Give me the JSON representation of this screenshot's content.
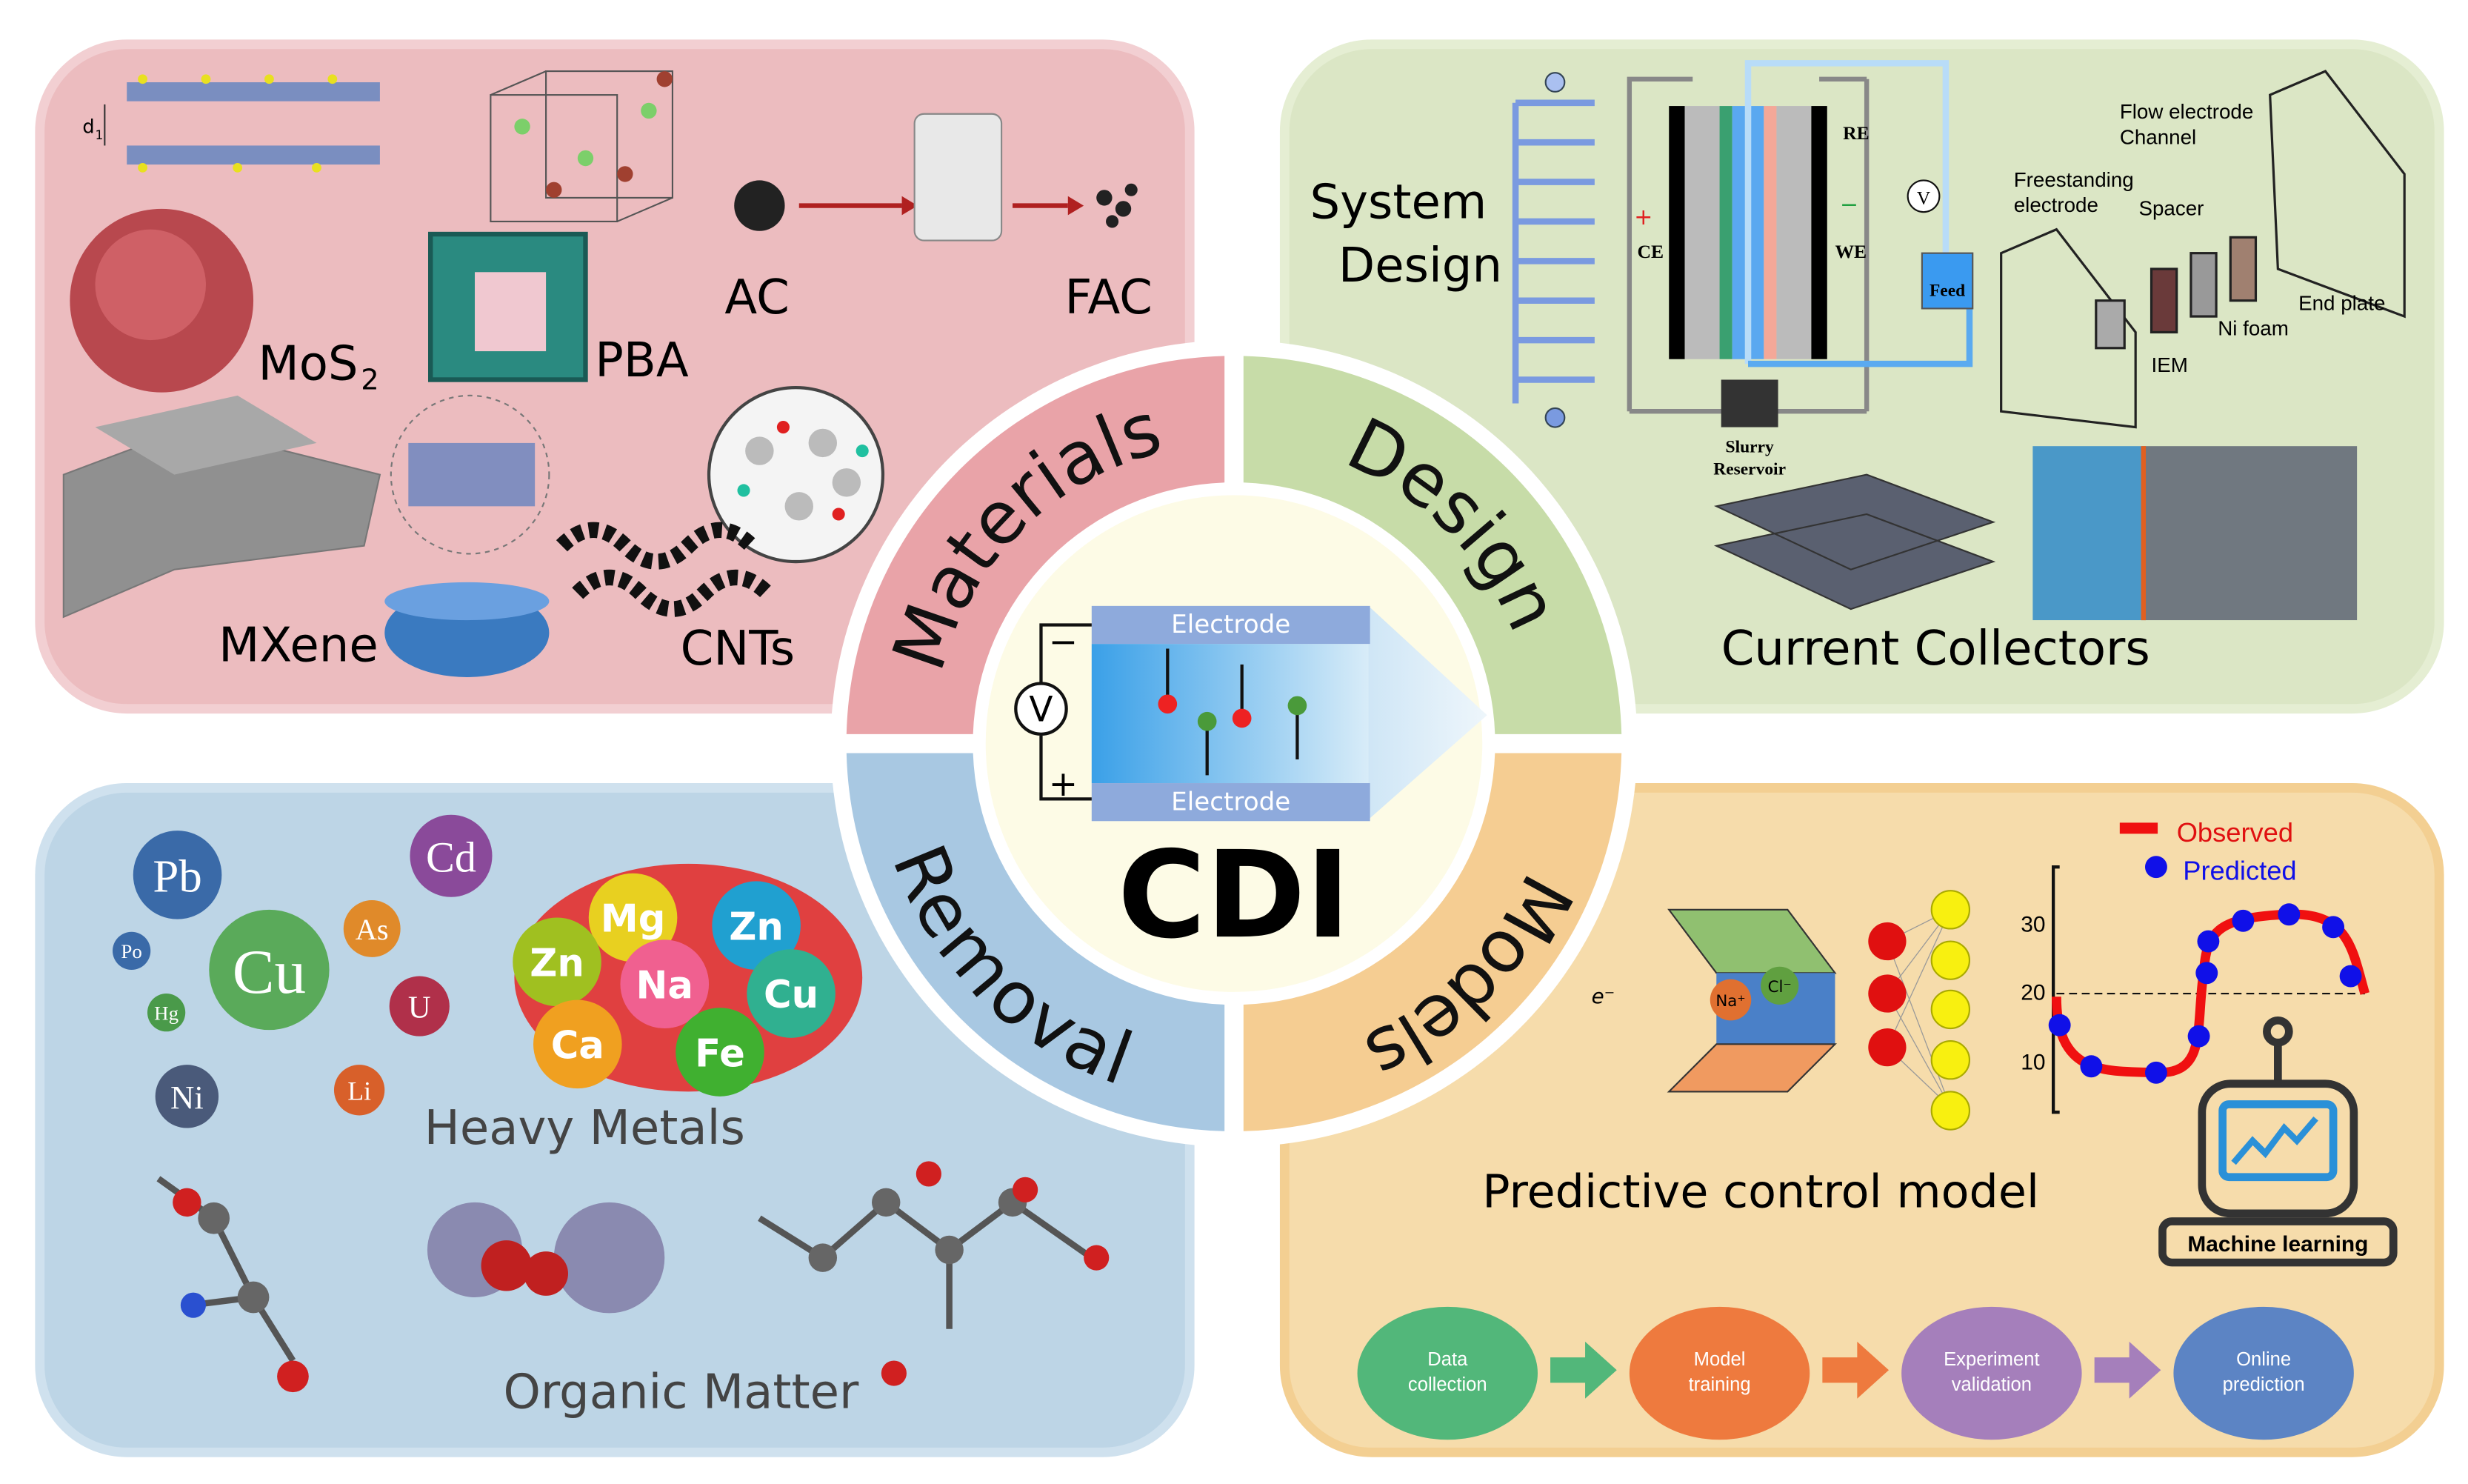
{
  "center": {
    "title": "CDI",
    "electrode_top": "Electrode",
    "electrode_bottom": "Electrode",
    "minus": "−",
    "plus": "+",
    "voltmeter": "V"
  },
  "bands": {
    "materials": "Materials",
    "design": "Design",
    "removal": "Removal",
    "models": "Models"
  },
  "materials": {
    "d1": "d",
    "d1_sub": "1",
    "mos2": "MoS",
    "mos2_sub": "2",
    "pba": "PBA",
    "ac": "AC",
    "fac": "FAC",
    "mxene": "MXene",
    "cnts": "CNTs"
  },
  "design": {
    "system_line1": "System",
    "system_line2": "Design",
    "re": "RE",
    "ce": "CE",
    "we": "WE",
    "plus": "+",
    "minus": "−",
    "v": "V",
    "feed": "Feed",
    "slurry_line1": "Slurry",
    "slurry_line2": "Reservoir",
    "flow_line1": "Flow electrode",
    "flow_line2": "Channel",
    "free_line1": "Freestanding",
    "free_line2": "electrode",
    "spacer": "Spacer",
    "end_plate": "End plate",
    "ni_foam": "Ni foam",
    "iem": "IEM",
    "current_collectors": "Current Collectors"
  },
  "removal": {
    "ions": [
      {
        "symbol": "Pb",
        "color": "#3a6aa8"
      },
      {
        "symbol": "Cd",
        "color": "#8a4a9a"
      },
      {
        "symbol": "Po",
        "color": "#3a6aa8"
      },
      {
        "symbol": "Cu",
        "color": "#5aaa5a"
      },
      {
        "symbol": "As",
        "color": "#e08a2a"
      },
      {
        "symbol": "Hg",
        "color": "#4a9a4a"
      },
      {
        "symbol": "U",
        "color": "#b0304a"
      },
      {
        "symbol": "Ni",
        "color": "#4a5a7a"
      },
      {
        "symbol": "Li",
        "color": "#d8602a"
      }
    ],
    "balls": [
      "Mg",
      "Zn",
      "Zn",
      "Na",
      "Cu",
      "Ca",
      "Fe"
    ],
    "heavy_metals": "Heavy Metals",
    "organic_matter": "Organic Matter"
  },
  "models": {
    "e_minus": "e⁻",
    "na": "Na⁺",
    "cl": "Cl⁻",
    "legend_observed": "Observed",
    "legend_predicted": "Predicted",
    "ticks": [
      "30",
      "20",
      "10"
    ],
    "predictive": "Predictive control model",
    "machine_learning": "Machine learning",
    "steps": [
      {
        "line1": "Data",
        "line2": "collection",
        "color": "#52b77a"
      },
      {
        "line1": "Model",
        "line2": "training",
        "color": "#ee7a3e"
      },
      {
        "line1": "Experiment",
        "line2": "validation",
        "color": "#a57fbb"
      },
      {
        "line1": "Online",
        "line2": "prediction",
        "color": "#5c84c4"
      }
    ]
  },
  "colors": {
    "materials_bg": "#ecbcbf",
    "materials_band": "#e9a3a8",
    "design_bg": "#dbe6c5",
    "design_band": "#c7dca8",
    "removal_bg": "#bdd5e6",
    "removal_band": "#a8c8e2",
    "models_bg": "#f6dcab",
    "models_band": "#f5cd92",
    "center": "#fdfbe6"
  }
}
